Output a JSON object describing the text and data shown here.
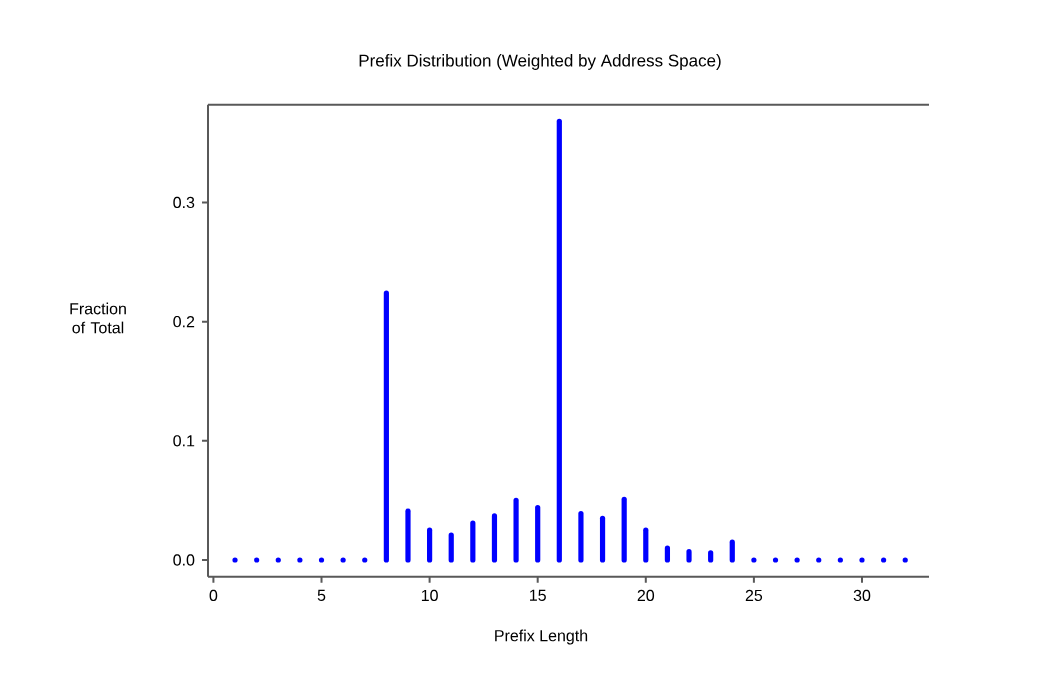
{
  "chart_data": {
    "type": "bar",
    "title": "Prefix Distribution (Weighted by Address Space)",
    "xlabel": "Prefix Length",
    "ylabel": "Fraction of Total",
    "x": [
      1,
      2,
      3,
      4,
      5,
      6,
      7,
      8,
      9,
      10,
      11,
      12,
      13,
      14,
      15,
      16,
      17,
      18,
      19,
      20,
      21,
      22,
      23,
      24,
      25,
      26,
      27,
      28,
      29,
      30,
      31,
      32
    ],
    "values": [
      0,
      0,
      0,
      0,
      0,
      0,
      0,
      0.224,
      0.041,
      0.025,
      0.021,
      0.031,
      0.037,
      0.05,
      0.044,
      0.368,
      0.039,
      0.035,
      0.051,
      0.025,
      0.01,
      0.007,
      0.006,
      0.015,
      0,
      0,
      0,
      0,
      0,
      0,
      0,
      0
    ],
    "color": "#0000ff",
    "xlim": [
      -0.25,
      33.1
    ],
    "ylim": [
      -0.014,
      0.382
    ],
    "xticks": [
      0,
      5,
      10,
      15,
      20,
      25,
      30
    ],
    "yticks": [
      {
        "value": 0,
        "label": "0.0"
      },
      {
        "value": 0.1,
        "label": "0.1"
      },
      {
        "value": 0.2,
        "label": "0.2"
      },
      {
        "value": 0.3,
        "label": "0.3"
      }
    ],
    "grid": false
  }
}
